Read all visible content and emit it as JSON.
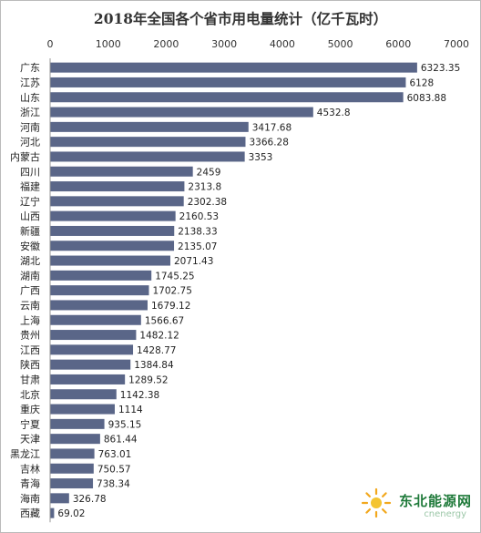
{
  "chart_data": {
    "type": "bar",
    "orientation": "horizontal",
    "title": "2018年全国各个省市用电量统计（亿千瓦时）",
    "categories": [
      "广东",
      "江苏",
      "山东",
      "浙江",
      "河南",
      "河北",
      "内蒙古",
      "四川",
      "福建",
      "辽宁",
      "山西",
      "新疆",
      "安徽",
      "湖北",
      "湖南",
      "广西",
      "云南",
      "上海",
      "贵州",
      "江西",
      "陕西",
      "甘肃",
      "北京",
      "重庆",
      "宁夏",
      "天津",
      "黑龙江",
      "吉林",
      "青海",
      "海南",
      "西藏"
    ],
    "values": [
      6323.35,
      6128,
      6083.88,
      4532.8,
      3417.68,
      3366.28,
      3353,
      2459,
      2313.8,
      2302.38,
      2160.53,
      2138.33,
      2135.07,
      2071.43,
      1745.25,
      1702.75,
      1679.12,
      1566.67,
      1482.12,
      1428.77,
      1384.84,
      1289.52,
      1142.38,
      1114,
      935.15,
      861.44,
      763.01,
      750.57,
      738.34,
      326.78,
      69.02
    ],
    "value_labels": [
      "6323.35",
      "6128",
      "6083.88",
      "4532.8",
      "3417.68",
      "3366.28",
      "3353",
      "2459",
      "2313.8",
      "2302.38",
      "2160.53",
      "2138.33",
      "2135.07",
      "2071.43",
      "1745.25",
      "1702.75",
      "1679.12",
      "1566.67",
      "1482.12",
      "1428.77",
      "1384.84",
      "1289.52",
      "1142.38",
      "1114",
      "935.15",
      "861.44",
      "763.01",
      "750.57",
      "738.34",
      "326.78",
      "69.02"
    ],
    "xlim": [
      0,
      7000
    ],
    "xticks": [
      "0",
      "1000",
      "2000",
      "3000",
      "4000",
      "5000",
      "6000",
      "7000"
    ],
    "xaxis_position": "top",
    "grid": false,
    "bar_color": "#5a6688"
  },
  "watermark": {
    "text": "东北能源网",
    "sub": "cnenergy"
  }
}
